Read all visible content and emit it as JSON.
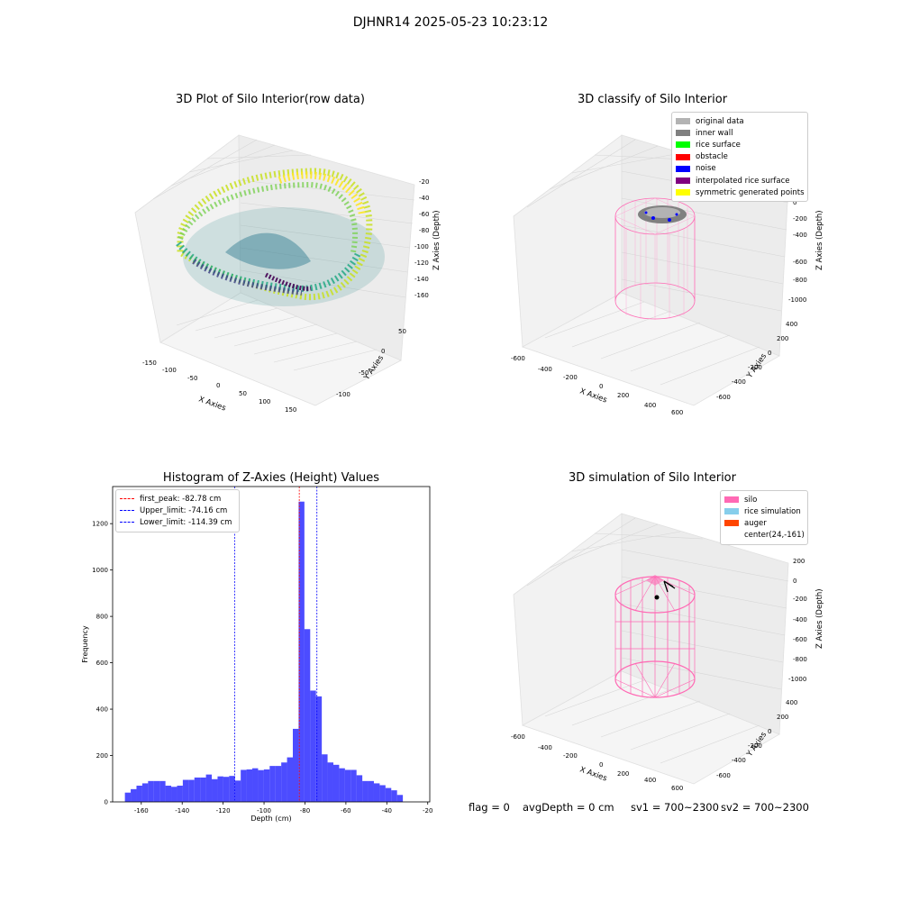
{
  "suptitle": "DJHNR14 2025-05-23 10:23:12",
  "plots": {
    "p1": {
      "title": "3D Plot of Silo Interior(row data)",
      "xlabel": "X Axies",
      "ylabel": "Y Axies",
      "zlabel": "Z Axies (Depth)",
      "xticks": [
        "-150",
        "-100",
        "-50",
        "0",
        "50",
        "100",
        "150"
      ],
      "yticks": [
        "50",
        "0",
        "-50",
        "-100"
      ],
      "zticks": [
        "-20",
        "-40",
        "-60",
        "-80",
        "-100",
        "-120",
        "-140",
        "-160"
      ]
    },
    "p2": {
      "title": "3D classify of Silo Interior",
      "xlabel": "X Axies",
      "ylabel": "Y Axies",
      "zlabel": "Z Axies (Depth)",
      "xticks": [
        "-600",
        "-400",
        "-200",
        "0",
        "200",
        "400",
        "600"
      ],
      "yticks": [
        "400",
        "200",
        "0",
        "-200",
        "-400",
        "-600"
      ],
      "zticks": [
        "200",
        "0",
        "-200",
        "-400",
        "-600",
        "-800",
        "-1000"
      ],
      "legend": [
        {
          "label": "original data",
          "color": "#b3b3b3"
        },
        {
          "label": "inner wall",
          "color": "#808080"
        },
        {
          "label": "rice surface",
          "color": "#00ff00"
        },
        {
          "label": "obstacle",
          "color": "#ff0000"
        },
        {
          "label": "noise",
          "color": "#0000ff"
        },
        {
          "label": "interpolated rice surface",
          "color": "#800080"
        },
        {
          "label": "symmetric generated points",
          "color": "#ffff00"
        }
      ]
    },
    "p4": {
      "title": "3D simulation of Silo Interior",
      "xlabel": "X Axies",
      "ylabel": "Y Axies",
      "zlabel": "Z Axies (Depth)",
      "xticks": [
        "-600",
        "-400",
        "-200",
        "0",
        "200",
        "400",
        "600"
      ],
      "yticks": [
        "400",
        "200",
        "0",
        "-200",
        "-400",
        "-600"
      ],
      "zticks": [
        "200",
        "0",
        "-200",
        "-400",
        "-600",
        "-800",
        "-1000"
      ],
      "legend": [
        {
          "label": "silo",
          "color": "#ff69b4"
        },
        {
          "label": "rice simulation",
          "color": "#87ceeb"
        },
        {
          "label": "auger",
          "color": "#ff4500"
        },
        {
          "label": "center(24,-161)",
          "color": "none"
        }
      ]
    }
  },
  "chart_data": {
    "type": "bar",
    "title": "Histogram of Z-Axies (Height) Values",
    "xlabel": "Depth (cm)",
    "ylabel": "Frequency",
    "xlim": [
      -174,
      -19
    ],
    "ylim": [
      0,
      1360
    ],
    "xticks": [
      "-160",
      "-140",
      "-120",
      "-100",
      "-80",
      "-60",
      "-40",
      "-20"
    ],
    "yticks": [
      "0",
      "200",
      "400",
      "600",
      "800",
      "1000",
      "1200"
    ],
    "bin_start": -168,
    "bin_width": 2.83,
    "color": "#0000ff",
    "values": [
      40,
      55,
      70,
      80,
      90,
      90,
      90,
      70,
      65,
      70,
      95,
      95,
      105,
      105,
      118,
      98,
      110,
      108,
      112,
      92,
      138,
      140,
      145,
      137,
      140,
      155,
      155,
      170,
      192,
      315,
      1295,
      745,
      480,
      455,
      205,
      170,
      160,
      145,
      138,
      138,
      115,
      90,
      90,
      80,
      72,
      60,
      50,
      30
    ],
    "vlines": [
      {
        "label": "first_peak: -82.78 cm",
        "x": -82.78,
        "color": "#ff0000"
      },
      {
        "label": "Upper_limit: -74.16 cm",
        "x": -74.16,
        "color": "#0000ff"
      },
      {
        "label": "Lower_limit: -114.39 cm",
        "x": -114.39,
        "color": "#0000ff"
      }
    ]
  },
  "status": {
    "flag": "flag = 0",
    "avg": "avgDepth = 0 cm",
    "sv1": "sv1 = 700~2300",
    "sv2": "sv2 = 700~2300"
  }
}
